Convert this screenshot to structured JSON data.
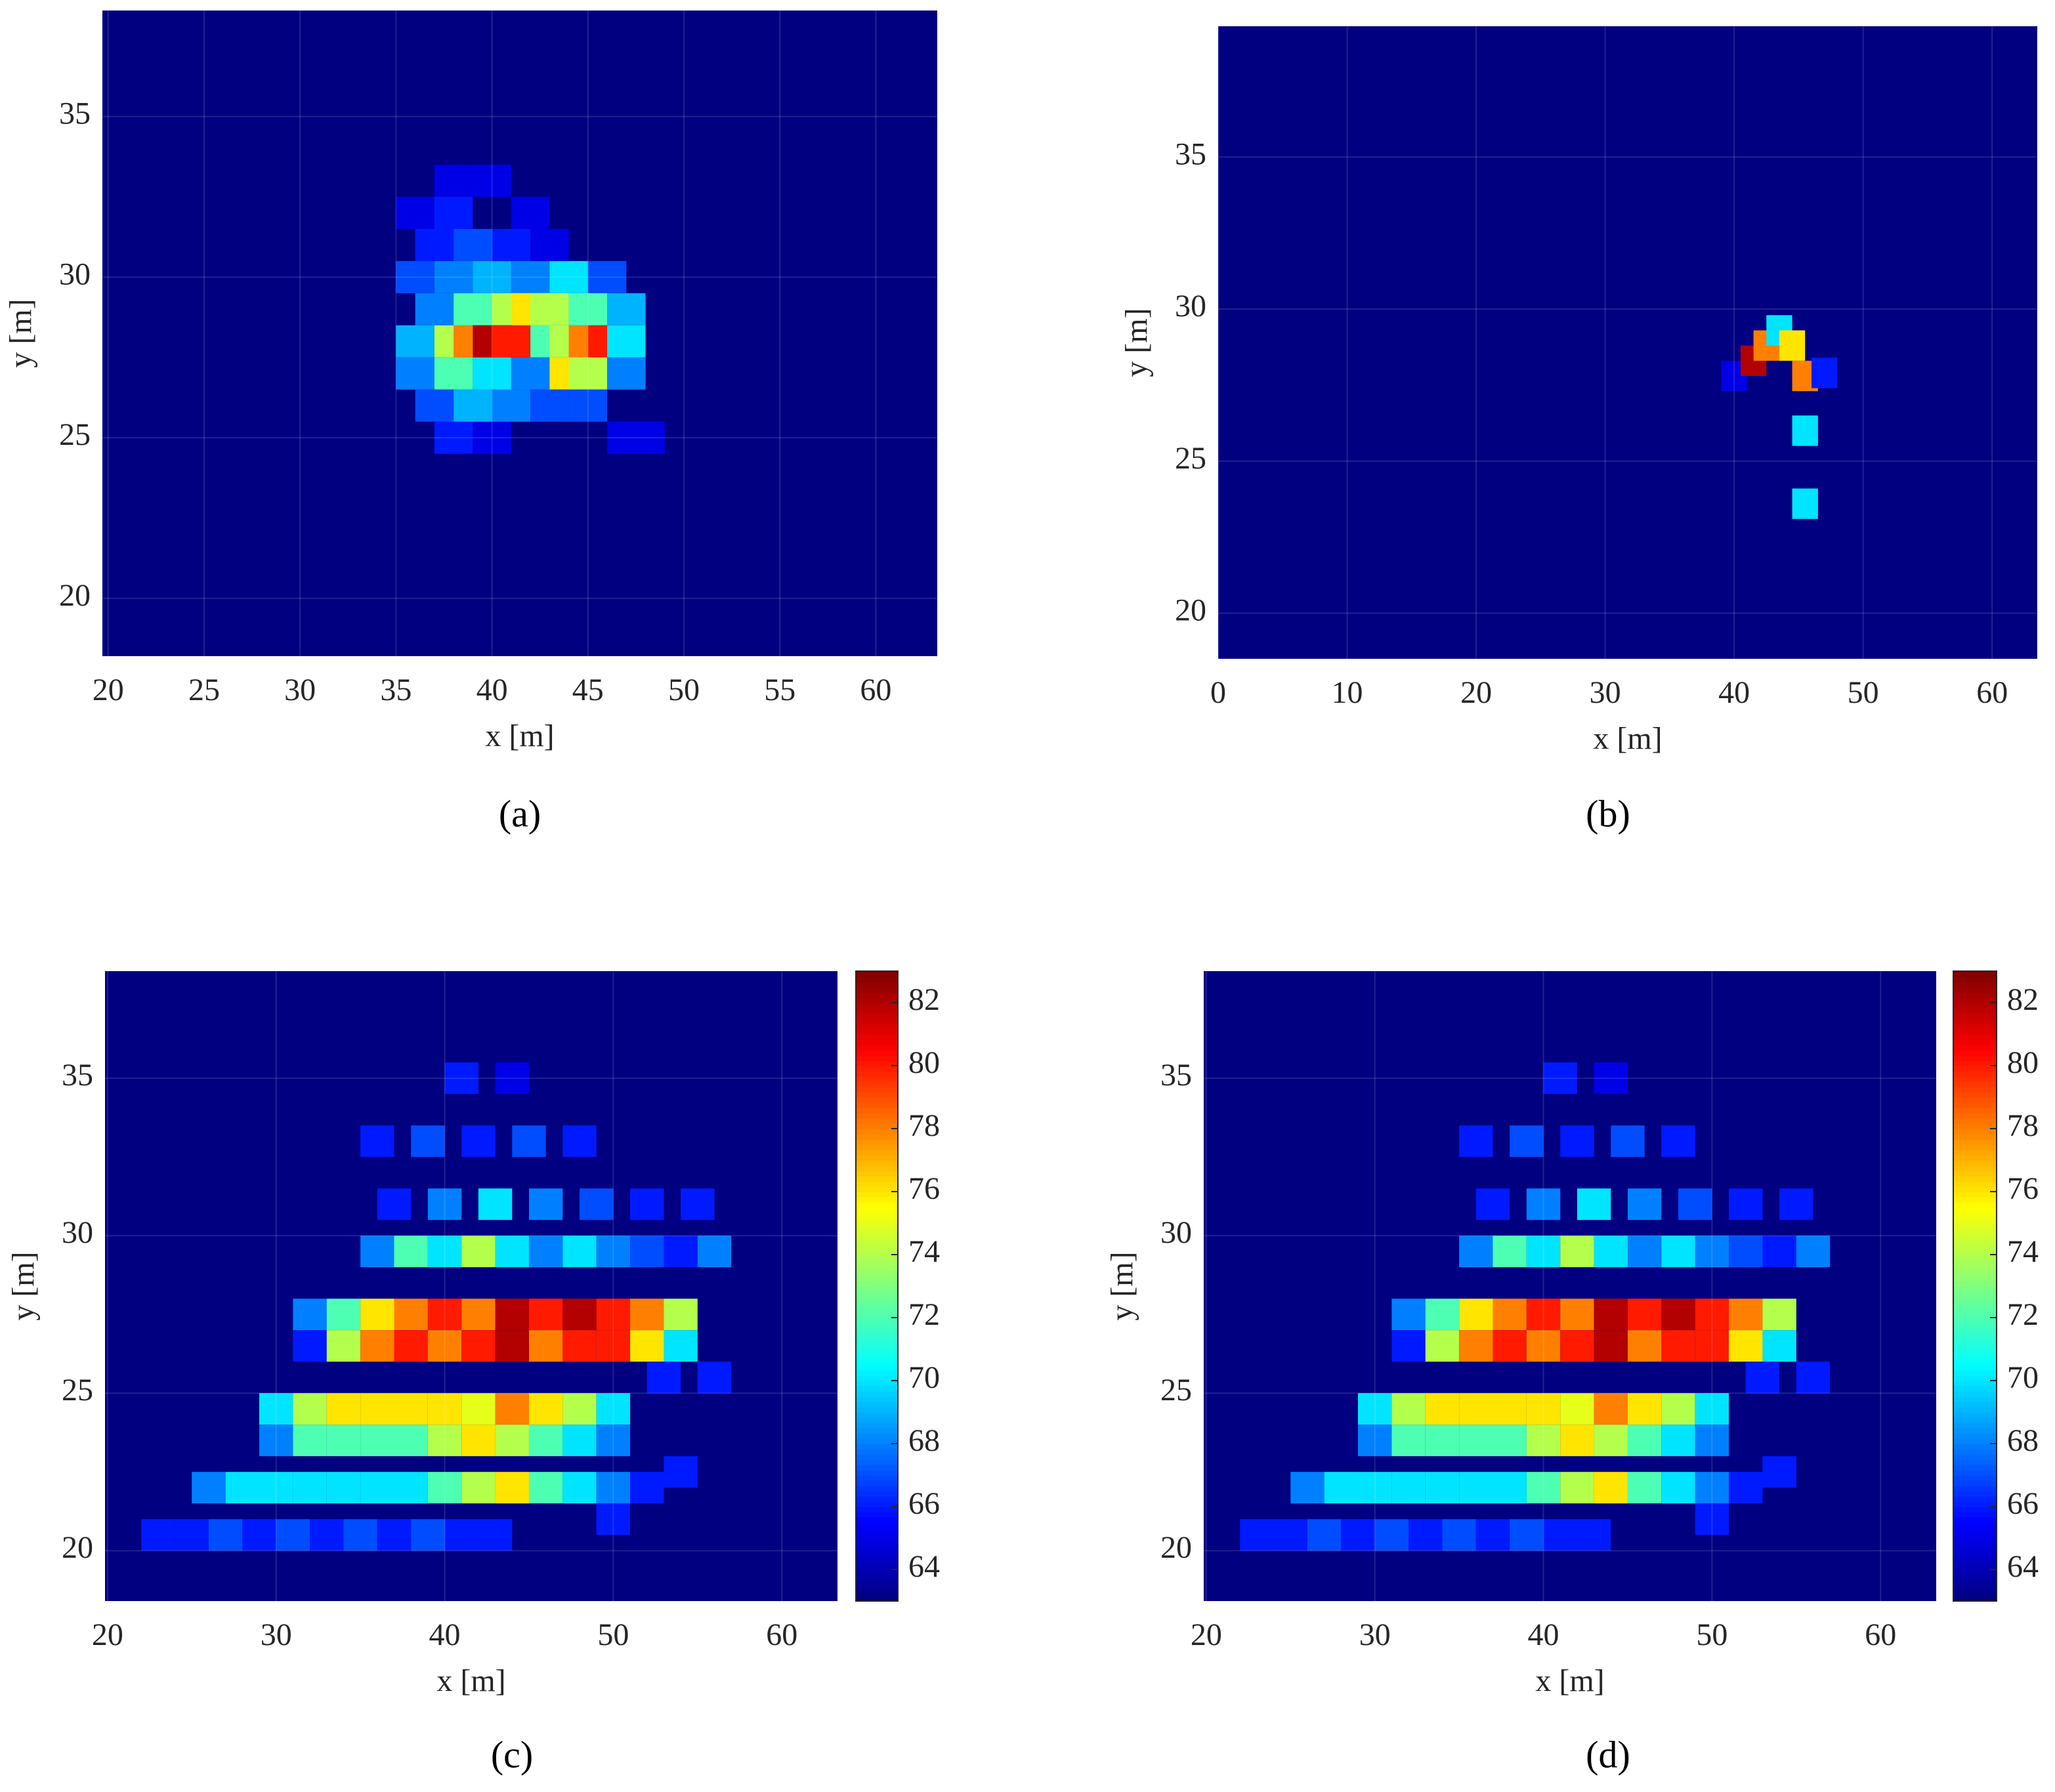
{
  "chart_data": [
    {
      "type": "heatmap",
      "caption": "(a)",
      "xlabel": "x [m]",
      "ylabel": "y [m]",
      "xlim": [
        19.7,
        63.2
      ],
      "ylim": [
        18.2,
        38.3
      ],
      "xticks": [
        20,
        25,
        30,
        35,
        40,
        45,
        50,
        55,
        60
      ],
      "yticks": [
        20,
        25,
        30,
        35
      ],
      "x": [
        37,
        39,
        41,
        43,
        36,
        38,
        40,
        42,
        44,
        46,
        37,
        39,
        41,
        42,
        43,
        45,
        47,
        36,
        38,
        39,
        40,
        41,
        43,
        44,
        45,
        46,
        47,
        36,
        38,
        40,
        42,
        44,
        45,
        47,
        37,
        39,
        41,
        43,
        45,
        38,
        40,
        47,
        48,
        38,
        40,
        36,
        38,
        42
      ],
      "y": [
        31,
        31,
        31,
        31,
        30,
        30,
        30,
        30,
        30,
        30,
        29,
        29,
        29,
        29,
        29,
        29,
        29,
        28,
        28,
        28,
        28,
        28,
        28,
        28,
        28,
        28,
        28,
        27,
        27,
        27,
        27,
        27,
        27,
        27,
        26,
        26,
        26,
        26,
        26,
        25,
        25,
        25,
        25,
        33,
        33,
        32,
        32,
        32
      ],
      "values": [
        66,
        67,
        66,
        65,
        67,
        68,
        69,
        68,
        70,
        67,
        68,
        72,
        74,
        76,
        74,
        72,
        69,
        69,
        74,
        78,
        82,
        80,
        72,
        74,
        78,
        80,
        70,
        68,
        72,
        70,
        68,
        76,
        74,
        68,
        67,
        69,
        68,
        67,
        67,
        66,
        65,
        65,
        65,
        65,
        65,
        65,
        66,
        65
      ],
      "zlim": [
        63,
        83
      ],
      "colormap": "jet",
      "grid": true,
      "colorbar": false
    },
    {
      "type": "heatmap",
      "caption": "(b)",
      "xlabel": "x [m]",
      "ylabel": "y [m]",
      "xlim": [
        0,
        63.5
      ],
      "ylim": [
        18.5,
        39.3
      ],
      "xticks": [
        0,
        10,
        20,
        30,
        40,
        50,
        60
      ],
      "yticks": [
        20,
        25,
        30,
        35
      ],
      "x": [
        40,
        41.5,
        42.5,
        43.5,
        44.5,
        45.5,
        45.5,
        45.5,
        47
      ],
      "y": [
        27.8,
        28.3,
        28.8,
        29.3,
        28.8,
        27.8,
        26,
        23.6,
        27.9
      ],
      "values": [
        65,
        82,
        78,
        70,
        76,
        78,
        70,
        70,
        66
      ],
      "zlim": [
        63,
        83
      ],
      "colormap": "jet",
      "grid": true,
      "colorbar": false
    },
    {
      "type": "heatmap",
      "caption": "(c)",
      "xlabel": "x [m]",
      "ylabel": "y [m]",
      "xlim": [
        19.85,
        63.3
      ],
      "ylim": [
        18.4,
        38.4
      ],
      "xticks": [
        20,
        30,
        40,
        50,
        60
      ],
      "yticks": [
        20,
        25,
        30,
        35
      ],
      "x": [
        32,
        34,
        36,
        38,
        40,
        42,
        44,
        46,
        48,
        50,
        52,
        54,
        32,
        34,
        36,
        38,
        40,
        42,
        44,
        46,
        48,
        50,
        52,
        54,
        30,
        32,
        34,
        36,
        38,
        40,
        42,
        44,
        46,
        48,
        50,
        30,
        32,
        34,
        36,
        38,
        40,
        42,
        44,
        46,
        48,
        50,
        26,
        28,
        30,
        32,
        34,
        36,
        38,
        40,
        42,
        44,
        46,
        48,
        50,
        52,
        23,
        25,
        27,
        29,
        31,
        33,
        35,
        37,
        39,
        41,
        43,
        36,
        38,
        40,
        42,
        44,
        46,
        48,
        50,
        52,
        54,
        56,
        37,
        40,
        43,
        46,
        49,
        52,
        55,
        36,
        39,
        42,
        45,
        48,
        41,
        44,
        53,
        56,
        54,
        50
      ],
      "y": [
        27.5,
        27.5,
        27.5,
        27.5,
        27.5,
        27.5,
        27.5,
        27.5,
        27.5,
        27.5,
        27.5,
        27.5,
        26.5,
        26.5,
        26.5,
        26.5,
        26.5,
        26.5,
        26.5,
        26.5,
        26.5,
        26.5,
        26.5,
        26.5,
        24.5,
        24.5,
        24.5,
        24.5,
        24.5,
        24.5,
        24.5,
        24.5,
        24.5,
        24.5,
        24.5,
        23.5,
        23.5,
        23.5,
        23.5,
        23.5,
        23.5,
        23.5,
        23.5,
        23.5,
        23.5,
        23.5,
        22,
        22,
        22,
        22,
        22,
        22,
        22,
        22,
        22,
        22,
        22,
        22,
        22,
        22,
        20.5,
        20.5,
        20.5,
        20.5,
        20.5,
        20.5,
        20.5,
        20.5,
        20.5,
        20.5,
        20.5,
        29.5,
        29.5,
        29.5,
        29.5,
        29.5,
        29.5,
        29.5,
        29.5,
        29.5,
        29.5,
        29.5,
        31,
        31,
        31,
        31,
        31,
        31,
        31,
        33,
        33,
        33,
        33,
        33,
        35,
        35,
        25.5,
        25.5,
        22.5,
        21
      ],
      "values": [
        68,
        72,
        76,
        78,
        80,
        78,
        82,
        80,
        82,
        80,
        78,
        74,
        66,
        74,
        78,
        80,
        78,
        80,
        82,
        78,
        80,
        80,
        76,
        70,
        70,
        74,
        76,
        76,
        76,
        76,
        75,
        78,
        76,
        74,
        70,
        68,
        72,
        72,
        72,
        72,
        74,
        76,
        74,
        72,
        70,
        68,
        68,
        70,
        70,
        70,
        70,
        70,
        70,
        72,
        74,
        76,
        72,
        70,
        68,
        66,
        66,
        66,
        67,
        66,
        67,
        66,
        67,
        66,
        67,
        66,
        66,
        68,
        72,
        70,
        74,
        70,
        68,
        70,
        68,
        67,
        66,
        68,
        66,
        68,
        70,
        68,
        67,
        66,
        66,
        66,
        67,
        66,
        67,
        66,
        66,
        65,
        66,
        66,
        66,
        66
      ],
      "zlim": [
        63,
        83
      ],
      "zticks": [
        64,
        66,
        68,
        70,
        72,
        74,
        76,
        78,
        80,
        82
      ],
      "colormap": "jet",
      "grid": true,
      "colorbar": true
    },
    {
      "type": "heatmap",
      "caption": "(d)",
      "xlabel": "x [m]",
      "ylabel": "y [m]",
      "xlim": [
        19.85,
        63.3
      ],
      "ylim": [
        18.4,
        38.4
      ],
      "xticks": [
        20,
        30,
        40,
        50,
        60
      ],
      "yticks": [
        20,
        25,
        30,
        35
      ],
      "x": [
        32,
        34,
        36,
        38,
        40,
        42,
        44,
        46,
        48,
        50,
        52,
        54,
        32,
        34,
        36,
        38,
        40,
        42,
        44,
        46,
        48,
        50,
        52,
        54,
        30,
        32,
        34,
        36,
        38,
        40,
        42,
        44,
        46,
        48,
        50,
        30,
        32,
        34,
        36,
        38,
        40,
        42,
        44,
        46,
        48,
        50,
        26,
        28,
        30,
        32,
        34,
        36,
        38,
        40,
        42,
        44,
        46,
        48,
        50,
        52,
        23,
        25,
        27,
        29,
        31,
        33,
        35,
        37,
        39,
        41,
        43,
        36,
        38,
        40,
        42,
        44,
        46,
        48,
        50,
        52,
        54,
        56,
        37,
        40,
        43,
        46,
        49,
        52,
        55,
        36,
        39,
        42,
        45,
        48,
        41,
        44,
        53,
        56,
        54,
        50
      ],
      "y": [
        27.5,
        27.5,
        27.5,
        27.5,
        27.5,
        27.5,
        27.5,
        27.5,
        27.5,
        27.5,
        27.5,
        27.5,
        26.5,
        26.5,
        26.5,
        26.5,
        26.5,
        26.5,
        26.5,
        26.5,
        26.5,
        26.5,
        26.5,
        26.5,
        24.5,
        24.5,
        24.5,
        24.5,
        24.5,
        24.5,
        24.5,
        24.5,
        24.5,
        24.5,
        24.5,
        23.5,
        23.5,
        23.5,
        23.5,
        23.5,
        23.5,
        23.5,
        23.5,
        23.5,
        23.5,
        23.5,
        22,
        22,
        22,
        22,
        22,
        22,
        22,
        22,
        22,
        22,
        22,
        22,
        22,
        22,
        20.5,
        20.5,
        20.5,
        20.5,
        20.5,
        20.5,
        20.5,
        20.5,
        20.5,
        20.5,
        20.5,
        29.5,
        29.5,
        29.5,
        29.5,
        29.5,
        29.5,
        29.5,
        29.5,
        29.5,
        29.5,
        29.5,
        31,
        31,
        31,
        31,
        31,
        31,
        31,
        33,
        33,
        33,
        33,
        33,
        35,
        35,
        25.5,
        25.5,
        22.5,
        21
      ],
      "values": [
        68,
        72,
        76,
        78,
        80,
        78,
        82,
        80,
        82,
        80,
        78,
        74,
        66,
        74,
        78,
        80,
        78,
        80,
        82,
        78,
        80,
        80,
        76,
        70,
        70,
        74,
        76,
        76,
        76,
        76,
        75,
        78,
        76,
        74,
        70,
        68,
        72,
        72,
        72,
        72,
        74,
        76,
        74,
        72,
        70,
        68,
        68,
        70,
        70,
        70,
        70,
        70,
        70,
        72,
        74,
        76,
        72,
        70,
        68,
        66,
        66,
        66,
        67,
        66,
        67,
        66,
        67,
        66,
        67,
        66,
        66,
        68,
        72,
        70,
        74,
        70,
        68,
        70,
        68,
        67,
        66,
        68,
        66,
        68,
        70,
        68,
        67,
        66,
        66,
        66,
        67,
        66,
        67,
        66,
        66,
        65,
        66,
        66,
        66,
        66
      ],
      "zlim": [
        63,
        83
      ],
      "zticks": [
        64,
        66,
        68,
        70,
        72,
        74,
        76,
        78,
        80,
        82
      ],
      "colormap": "jet",
      "grid": true,
      "colorbar": true
    }
  ]
}
